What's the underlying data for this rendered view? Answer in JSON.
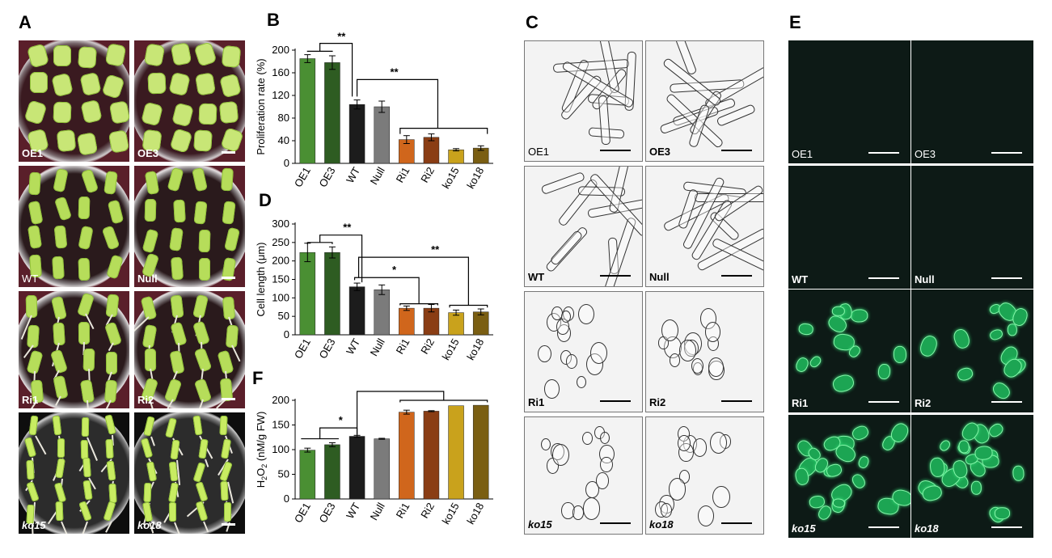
{
  "panels": {
    "a": "A",
    "b": "B",
    "c": "C",
    "d": "D",
    "e": "E",
    "f": "F"
  },
  "plates": [
    "OE1",
    "OE3",
    "WT",
    "Null",
    "Ri1",
    "Ri2",
    "ko15",
    "ko18"
  ],
  "micrographs": [
    "OE1",
    "OE3",
    "WT",
    "Null",
    "Ri1",
    "Ri2",
    "ko15",
    "ko18"
  ],
  "fluorescence": [
    "OE1",
    "OE3",
    "WT",
    "Null",
    "Ri1",
    "Ri2",
    "ko15",
    "ko18"
  ],
  "colors": [
    "#4a8f33",
    "#2e5c22",
    "#1c1c1c",
    "#7b7b7b",
    "#d0661c",
    "#8a3d14",
    "#c9a21c",
    "#7a5e12"
  ],
  "chart_data": [
    {
      "type": "bar",
      "panel": "B",
      "categories": [
        "OE1",
        "OE3",
        "WT",
        "Null",
        "Ri1",
        "Ri2",
        "ko15",
        "ko18"
      ],
      "values": [
        185,
        178,
        104,
        100,
        42,
        46,
        24,
        27
      ],
      "errors": [
        7,
        12,
        8,
        10,
        7,
        6,
        2,
        4
      ],
      "ylabel": "Proliferation rate (%)",
      "ylim": [
        0,
        200
      ],
      "ticks": [
        0,
        40,
        80,
        120,
        160,
        200
      ],
      "significance": [
        "**",
        "**"
      ]
    },
    {
      "type": "bar",
      "panel": "D",
      "categories": [
        "OE1",
        "OE3",
        "WT",
        "Null",
        "Ri1",
        "Ri2",
        "ko15",
        "ko18"
      ],
      "values": [
        223,
        223,
        130,
        122,
        72,
        72,
        60,
        62
      ],
      "errors": [
        25,
        15,
        10,
        13,
        6,
        10,
        7,
        8
      ],
      "ylabel": "Cell length (μm)",
      "ylim": [
        0,
        300
      ],
      "ticks": [
        0,
        50,
        100,
        150,
        200,
        250,
        300
      ],
      "significance": [
        "**",
        "*",
        "**"
      ]
    },
    {
      "type": "bar",
      "panel": "F",
      "categories": [
        "OE1",
        "OE3",
        "WT",
        "Null",
        "Ri1",
        "Ri2",
        "ko15",
        "ko18"
      ],
      "values": [
        99,
        110,
        127,
        122,
        176,
        178,
        189,
        190
      ],
      "errors": [
        4,
        4,
        2,
        1,
        4,
        1,
        0,
        0
      ],
      "ylabel_main": "H",
      "ylabel_sub1": "2",
      "ylabel_mid": "O",
      "ylabel_sub2": "2",
      "ylabel_unit": " (nM/g FW)",
      "ylim": [
        0,
        200
      ],
      "ticks": [
        0,
        50,
        100,
        150,
        200
      ],
      "significance": [
        "*",
        "**"
      ]
    }
  ]
}
